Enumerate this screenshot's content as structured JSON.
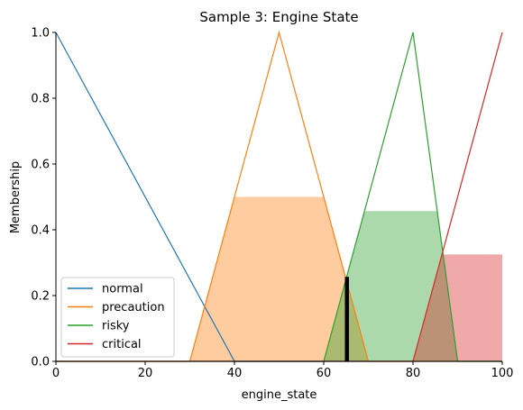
{
  "chart_data": {
    "type": "line",
    "title": "Sample 3: Engine State",
    "xlabel": "engine_state",
    "ylabel": "Membership",
    "xlim": [
      0,
      100
    ],
    "ylim": [
      0,
      1.0
    ],
    "xticks": [
      0,
      20,
      40,
      60,
      80,
      100
    ],
    "yticks": [
      0.0,
      0.2,
      0.4,
      0.6,
      0.8,
      1.0
    ],
    "tick_labels": {
      "x": [
        "0",
        "20",
        "40",
        "60",
        "80",
        "100"
      ],
      "y": [
        "0.0",
        "0.2",
        "0.4",
        "0.6",
        "0.8",
        "1.0"
      ]
    },
    "legend_placement": "lower-left",
    "series": [
      {
        "name": "normal",
        "color": "#1f77b4",
        "x": [
          0,
          40,
          100
        ],
        "y": [
          1.0,
          0.0,
          0.0
        ]
      },
      {
        "name": "precaution",
        "color": "#ff7f0e",
        "x": [
          0,
          30,
          50,
          70,
          100
        ],
        "y": [
          0.0,
          0.0,
          1.0,
          0.0,
          0.0
        ]
      },
      {
        "name": "risky",
        "color": "#2ca02c",
        "x": [
          0,
          60,
          80,
          90,
          100
        ],
        "y": [
          0.0,
          0.0,
          1.0,
          0.0,
          0.0
        ]
      },
      {
        "name": "critical",
        "color": "#d62728",
        "x": [
          0,
          80,
          100
        ],
        "y": [
          0.0,
          0.0,
          1.0
        ]
      }
    ],
    "activations": [
      {
        "series": "precaution",
        "color": "#ff7f0e",
        "level": 0.5
      },
      {
        "series": "risky",
        "color": "#2ca02c",
        "level": 0.457
      },
      {
        "series": "critical",
        "color": "#d62728",
        "level": 0.325
      }
    ],
    "crisp_output": {
      "x": 65.2,
      "y": 0.257,
      "color": "#000000"
    }
  }
}
